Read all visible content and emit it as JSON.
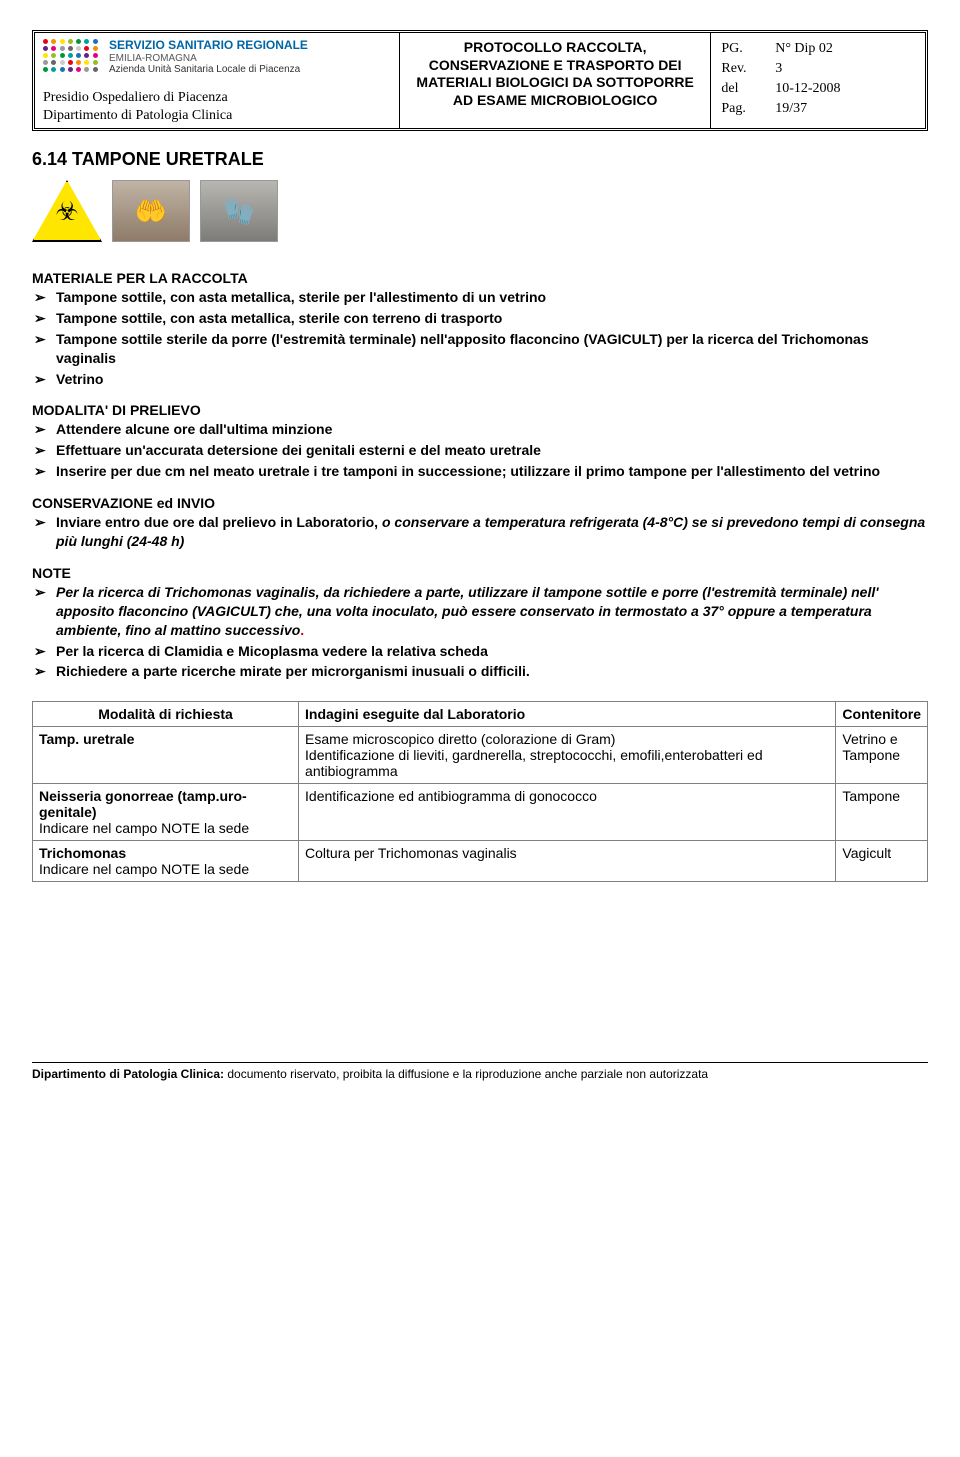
{
  "header": {
    "logo": {
      "line1": "SERVIZIO SANITARIO REGIONALE",
      "line2": "EMILIA-ROMAGNA",
      "line3": "Azienda Unità Sanitaria Locale di Piacenza",
      "dot_colors": [
        "#e30613",
        "#f39200",
        "#ffe600",
        "#95c11f",
        "#009640",
        "#00a19a",
        "#1d71b8",
        "#662483",
        "#e6007e",
        "#999",
        "#666",
        "#ccc"
      ]
    },
    "presidio": [
      "Presidio Ospedaliero di Piacenza",
      "Dipartimento di Patologia Clinica"
    ],
    "mid_title": "PROTOCOLLO RACCOLTA, CONSERVAZIONE E TRASPORTO DEI MATERIALI BIOLOGICI DA SOTTOPORRE AD ESAME MICROBIOLOGICO",
    "meta": [
      {
        "k": "PG.",
        "v": "N° Dip 02"
      },
      {
        "k": "Rev.",
        "v": "3"
      },
      {
        "k": "del",
        "v": "10-12-2008"
      },
      {
        "k": "Pag.",
        "v": "19/37"
      }
    ]
  },
  "title": "6.14 TAMPONE URETRALE",
  "sections": {
    "materiale": {
      "head": "MATERIALE PER LA RACCOLTA",
      "items": [
        "Tampone sottile, con asta metallica, sterile per l'allestimento di un vetrino",
        "Tampone sottile, con asta metallica, sterile con terreno di trasporto",
        "Tampone sottile sterile da porre (l'estremità terminale) nell'apposito flaconcino (VAGICULT) per la ricerca del Trichomonas vaginalis",
        "Vetrino"
      ]
    },
    "modalita": {
      "head": "MODALITA' DI PRELIEVO",
      "items": [
        "Attendere alcune ore dall'ultima minzione",
        "Effettuare un'accurata detersione dei genitali esterni e del meato uretrale",
        "Inserire per due cm nel meato uretrale i tre tamponi in successione; utilizzare il primo tampone per l'allestimento del vetrino"
      ]
    },
    "conservazione": {
      "head": "CONSERVAZIONE ed INVIO",
      "items_html": [
        "Inviare entro due ore dal prelievo in Laboratorio, <i>o conservare  a temperatura refrigerata (4-8°C) se si prevedono tempi di consegna più lunghi (24-48 h)</i>"
      ]
    },
    "note": {
      "head": "NOTE",
      "items_html": [
        "<i>Per la ricerca di Trichomonas vaginalis, da richiedere a parte, utilizzare il tampone  sottile  e porre (l'estremità terminale) nell' apposito flaconcino (VAGICULT) che, una volta inoculato, può essere conservato in termostato a 37° oppure a temperatura ambiente, fino al mattino successivo</i><span class='dot-red'>.</span>",
        "Per la ricerca di Clamidia e Micoplasma vedere la relativa scheda",
        "Richiedere a parte ricerche mirate per microrganismi inusuali o difficili."
      ]
    }
  },
  "table": {
    "headers": [
      "Modalità di richiesta",
      "Indagini eseguite dal Laboratorio",
      "Contenitore"
    ],
    "rows": [
      {
        "c0": "<b>Tamp. uretrale</b>",
        "c1": "Esame microscopico diretto (colorazione di Gram)<br>Identificazione di lieviti, gardnerella, streptococchi, emofili,enterobatteri ed antibiogramma",
        "c2": "Vetrino e<br>Tampone"
      },
      {
        "c0": "<b>Neisseria gonorreae  (tamp.uro-genitale)</b><br>Indicare nel campo NOTE la sede",
        "c1": "Identificazione ed antibiogramma di gonococco",
        "c2": "Tampone"
      },
      {
        "c0": "<b>Trichomonas</b><br>Indicare nel campo NOTE la sede",
        "c1": "Coltura per Trichomonas vaginalis",
        "c2": "Vagicult"
      }
    ]
  },
  "footer": {
    "bold": "Dipartimento di Patologia Clinica:",
    "text": " documento riservato, proibita la diffusione e la riproduzione anche parziale  non autorizzata"
  }
}
